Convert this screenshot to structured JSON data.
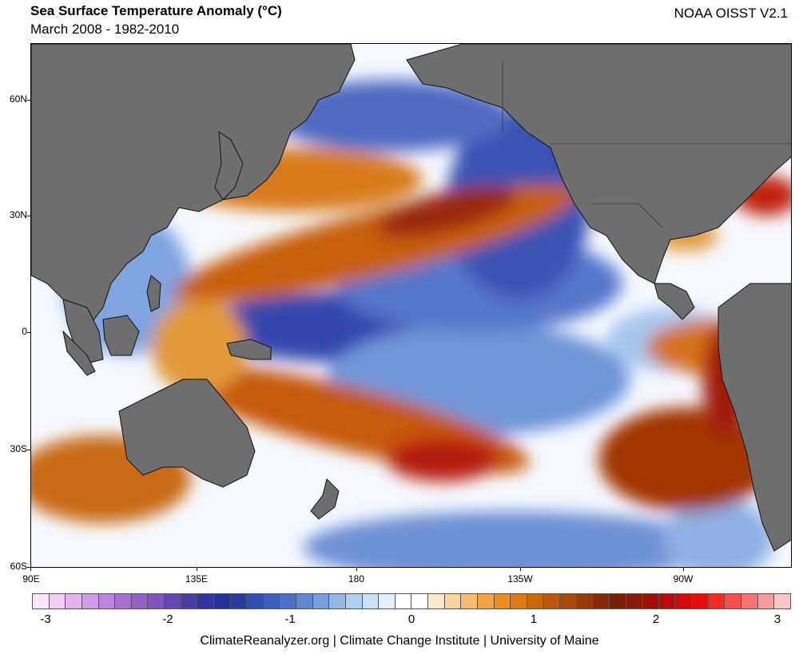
{
  "header": {
    "title": "Sea Surface Temperature Anomaly (°C)",
    "subtitle": "March 2008 - 1982-2010",
    "dataset": "NOAA OISST V2.1"
  },
  "map": {
    "y_labels": [
      "60N",
      "30N",
      "0",
      "30S",
      "60S"
    ],
    "x_labels": [
      "90E",
      "135E",
      "180",
      "135W",
      "90W"
    ],
    "colors": {
      "land": "#6e6e6e",
      "ocean_neutral": "#ffffff",
      "warm": "#c4560a",
      "hot": "#a10f06",
      "cool": "#3f61c3",
      "cold": "#27349b"
    }
  },
  "colorbar": {
    "ticks": [
      "-3",
      "-2",
      "-1",
      "0",
      "1",
      "2",
      "3"
    ],
    "colors": [
      "#fde6fb",
      "#f2cdf7",
      "#e3b2f0",
      "#d29ae7",
      "#bc84dc",
      "#a86fd1",
      "#9462c7",
      "#7d55bf",
      "#6347b3",
      "#4b3ba7",
      "#34329e",
      "#263299",
      "#263ea4",
      "#2f4fb0",
      "#3a5fbe",
      "#4a73c8",
      "#5e88d2",
      "#77a0dd",
      "#93b8e6",
      "#aed0ef",
      "#c8e1f5",
      "#e3eefa",
      "#ffffff",
      "#ffffff",
      "#fde7c9",
      "#fcd39c",
      "#f8bb6e",
      "#f2a33f",
      "#ec8e1e",
      "#de7a10",
      "#cd680d",
      "#bc570b",
      "#aa4709",
      "#983907",
      "#872b06",
      "#7a1e05",
      "#8c1a0c",
      "#a01108",
      "#b80b0a",
      "#d0090a",
      "#e80c0d",
      "#f92a22",
      "#f74d4d",
      "#f77575",
      "#f89a9a",
      "#fcc4c4"
    ]
  },
  "credit": "ClimateReanalyzer.org | Climate Change Institute | University of Maine"
}
